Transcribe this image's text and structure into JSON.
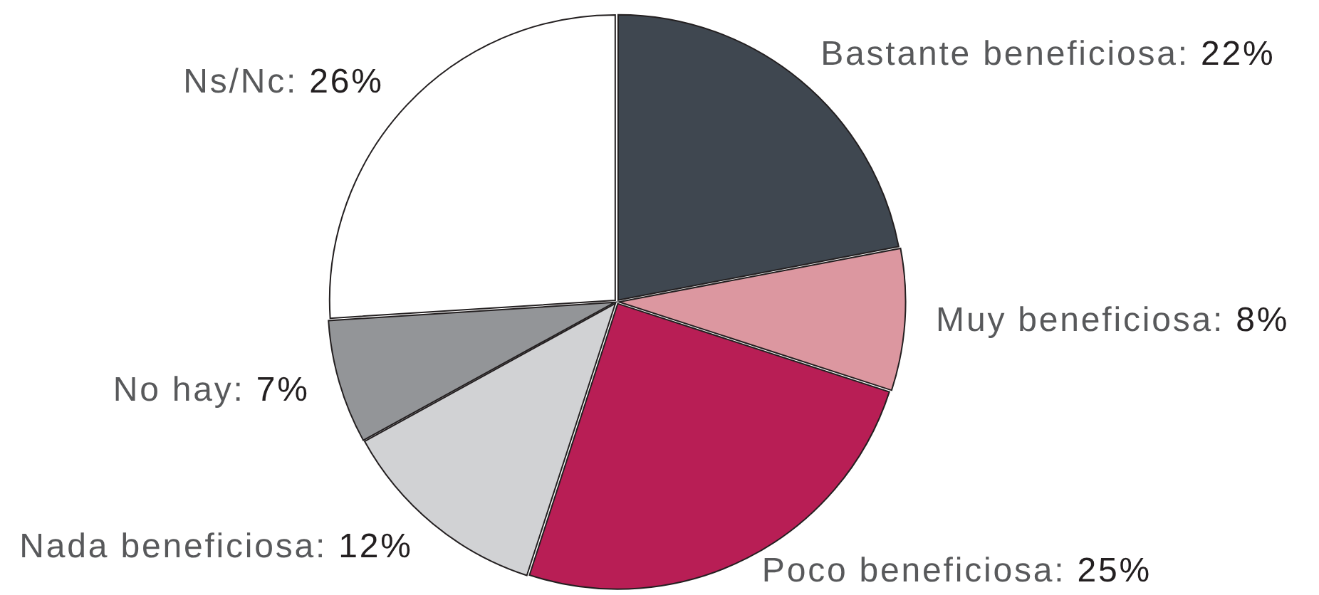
{
  "chart_data": {
    "type": "pie",
    "categories": [
      "Bastante beneficiosa",
      "Muy beneficiosa",
      "Poco beneficiosa",
      "Nada beneficiosa",
      "No hay",
      "Ns/Nc"
    ],
    "values": [
      22,
      8,
      25,
      12,
      7,
      26
    ],
    "value_labels": [
      "22%",
      "8%",
      "25%",
      "12%",
      "7%",
      "26%"
    ],
    "colors": [
      "#3f4750",
      "#dc97a0",
      "#b81e55",
      "#d1d2d4",
      "#939598",
      "#ffffff"
    ]
  }
}
